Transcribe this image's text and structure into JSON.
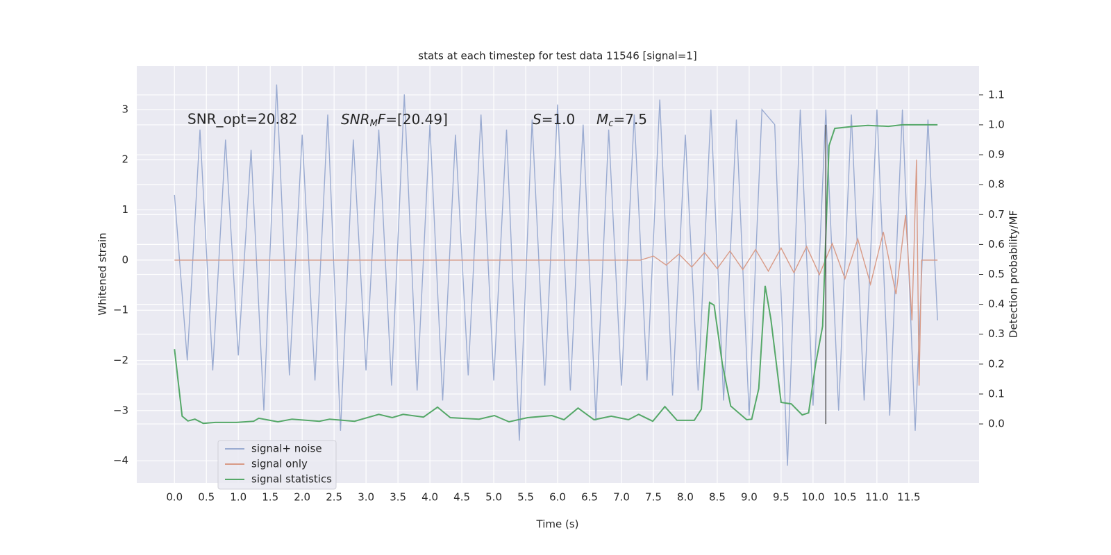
{
  "chart_data": {
    "type": "line",
    "title": "stats at each timestep for test data 11546 [signal=1]",
    "xlabel": "Time (s)",
    "ylabel": "Whitened strain",
    "y2label": "Detection probability/MF",
    "xlim": [
      -0.59,
      12.6
    ],
    "ylim": [
      -4.44,
      3.87
    ],
    "y2lim": [
      -0.197,
      1.197
    ],
    "grid": true,
    "legend": "lower left",
    "xticks": [
      {
        "value": 0,
        "label": "0.0"
      },
      0.5,
      {
        "value": 1,
        "label": "1.0"
      },
      1.5,
      {
        "value": 2,
        "label": "2.0"
      },
      2.5,
      {
        "value": 3,
        "label": "3.0"
      },
      3.5,
      {
        "value": 4,
        "label": "4.0"
      },
      4.5,
      {
        "value": 5,
        "label": "5.0"
      },
      5.5,
      {
        "value": 6,
        "label": "6.0"
      },
      6.5,
      {
        "value": 7,
        "label": "7.0"
      },
      7.5,
      {
        "value": 8,
        "label": "8.0"
      },
      8.5,
      {
        "value": 9,
        "label": "9.0"
      },
      9.5,
      {
        "value": 10,
        "label": "10.0"
      },
      10.5,
      {
        "value": 11,
        "label": "11.0"
      },
      11.5
    ],
    "yticks": [
      {
        "value": -4,
        "label": "−4"
      },
      {
        "value": -3,
        "label": "−3"
      },
      {
        "value": -2,
        "label": "−2"
      },
      {
        "value": -1,
        "label": "−1"
      },
      0,
      1,
      2,
      3
    ],
    "y2ticks": [
      {
        "value": 0,
        "label": "0.0"
      },
      0.1,
      0.2,
      0.3,
      0.4,
      0.5,
      0.6,
      0.7,
      0.8,
      0.9,
      {
        "value": 1,
        "label": "1.0"
      },
      1.1
    ],
    "annotations": [
      {
        "text": "SNR_opt=20.82"
      },
      {
        "base": "SNR",
        "sub": "M",
        "tail": "F",
        "value": "=[20.49]"
      },
      {
        "base": "S",
        "value": "=1.0"
      },
      {
        "base": "M",
        "sub": "c",
        "value": "=7.5"
      }
    ],
    "vline": {
      "x": 10.2,
      "y2": [
        0,
        1
      ],
      "color": "#555555"
    },
    "series": [
      {
        "name": "signal+ noise",
        "color": "#9aabd1",
        "x": [
          0,
          0.2,
          0.4,
          0.6,
          0.8,
          1,
          1.2,
          1.4,
          1.6,
          1.8,
          2,
          2.2,
          2.4,
          2.6,
          2.8,
          3,
          3.2,
          3.4,
          3.6,
          3.8,
          4,
          4.2,
          4.4,
          4.6,
          4.8,
          5,
          5.2,
          5.4,
          5.6,
          5.8,
          6,
          6.2,
          6.4,
          6.6,
          6.8,
          7,
          7.2,
          7.4,
          7.6,
          7.8,
          8,
          8.2,
          8.4,
          8.6,
          8.8,
          9,
          9.2,
          9.4,
          9.6,
          9.8,
          10,
          10.2,
          10.4,
          10.6,
          10.8,
          11,
          11.2,
          11.4,
          11.6,
          11.8,
          11.95
        ],
        "values": [
          1.3,
          -2.0,
          2.6,
          -2.2,
          2.4,
          -1.9,
          2.2,
          -3.0,
          3.5,
          -2.3,
          2.5,
          -2.4,
          2.9,
          -3.4,
          2.4,
          -2.2,
          2.6,
          -2.5,
          3.3,
          -2.6,
          2.7,
          -2.8,
          2.5,
          -2.3,
          2.9,
          -2.4,
          2.6,
          -3.6,
          2.8,
          -2.5,
          3.1,
          -2.6,
          2.7,
          -3.2,
          2.6,
          -2.5,
          2.9,
          -2.4,
          3.2,
          -2.7,
          2.5,
          -2.6,
          3.0,
          -2.8,
          2.8,
          -3.1,
          3.0,
          2.7,
          -4.1,
          3.0,
          -2.9,
          3.0,
          -3.0,
          2.9,
          -2.8,
          3.0,
          -3.1,
          3.0,
          -3.4,
          2.8,
          -1.2
        ]
      },
      {
        "name": "signal only",
        "color": "#d89a86",
        "x": [
          0,
          7.3,
          7.5,
          7.7,
          7.9,
          8.1,
          8.3,
          8.5,
          8.7,
          8.9,
          9.1,
          9.3,
          9.5,
          9.7,
          9.9,
          10.1,
          10.3,
          10.5,
          10.7,
          10.9,
          11.1,
          11.3,
          11.45,
          11.55,
          11.62,
          11.66,
          11.7,
          11.95
        ],
        "values": [
          0,
          0,
          0.08,
          -0.1,
          0.12,
          -0.14,
          0.15,
          -0.17,
          0.18,
          -0.19,
          0.21,
          -0.22,
          0.24,
          -0.25,
          0.27,
          -0.29,
          0.33,
          -0.37,
          0.42,
          -0.48,
          0.56,
          -0.68,
          0.9,
          -1.2,
          2.0,
          -2.5,
          0,
          0
        ]
      },
      {
        "name": "signal statistics",
        "color": "#55a868",
        "axis": "y2",
        "x": [
          0,
          0.12,
          0.21,
          0.32,
          0.45,
          0.64,
          0.97,
          1.24,
          1.32,
          1.62,
          1.84,
          2.27,
          2.43,
          2.82,
          3.2,
          3.41,
          3.58,
          3.9,
          4.12,
          4.32,
          4.77,
          5.01,
          5.24,
          5.53,
          5.91,
          6.1,
          6.32,
          6.57,
          6.84,
          7.11,
          7.27,
          7.49,
          7.68,
          7.87,
          8.14,
          8.25,
          8.38,
          8.45,
          8.58,
          8.71,
          8.96,
          9.04,
          9.15,
          9.25,
          9.34,
          9.5,
          9.66,
          9.83,
          9.93,
          10.04,
          10.15,
          10.25,
          10.34,
          10.64,
          10.86,
          11.18,
          11.4,
          11.95
        ],
        "values": [
          0.25,
          0.026,
          0.01,
          0.016,
          0.002,
          0.005,
          0.005,
          0.009,
          0.019,
          0.007,
          0.016,
          0.009,
          0.016,
          0.009,
          0.032,
          0.021,
          0.032,
          0.023,
          0.056,
          0.021,
          0.016,
          0.028,
          0.007,
          0.021,
          0.028,
          0.014,
          0.053,
          0.014,
          0.026,
          0.014,
          0.032,
          0.009,
          0.058,
          0.012,
          0.012,
          0.049,
          0.406,
          0.397,
          0.2,
          0.06,
          0.014,
          0.016,
          0.118,
          0.462,
          0.35,
          0.072,
          0.067,
          0.03,
          0.037,
          0.2,
          0.327,
          0.93,
          0.988,
          0.995,
          0.998,
          0.995,
          1.0,
          1.0
        ]
      }
    ]
  }
}
